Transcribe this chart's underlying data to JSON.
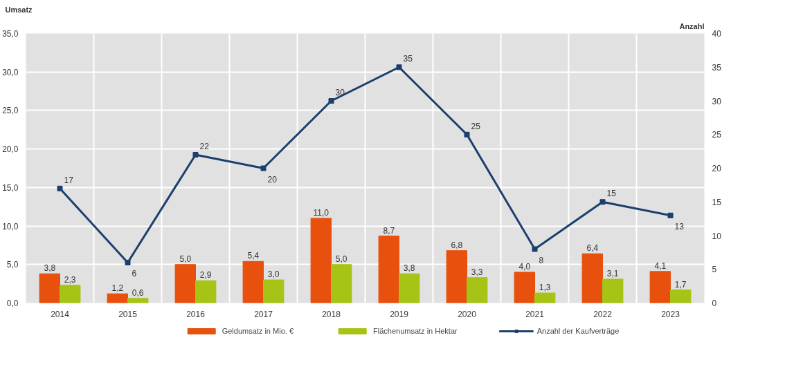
{
  "chart_data": {
    "type": "bar",
    "ylabel": "Umsatz",
    "y2label": "Anzahl",
    "categories": [
      "2014",
      "2015",
      "2016",
      "2017",
      "2018",
      "2019",
      "2020",
      "2021",
      "2022",
      "2023"
    ],
    "series": [
      {
        "name": "Geldumsatz in Mio. €",
        "color": "#e8500e",
        "values": [
          3.8,
          1.2,
          5.0,
          5.4,
          11.0,
          8.7,
          6.8,
          4.0,
          6.4,
          4.1
        ],
        "value_labels": [
          "3,8",
          "1,2",
          "5,0",
          "5,4",
          "11,0",
          "8,7",
          "6,8",
          "4,0",
          "6,4",
          "4,1"
        ]
      },
      {
        "name": "Flächenumsatz in Hektar",
        "color": "#a5c416",
        "values": [
          2.3,
          0.6,
          2.9,
          3.0,
          5.0,
          3.8,
          3.3,
          1.3,
          3.1,
          1.7
        ],
        "value_labels": [
          "2,3",
          "0,6",
          "2,9",
          "3,0",
          "5,0",
          "3,8",
          "3,3",
          "1,3",
          "3,1",
          "1,7"
        ]
      },
      {
        "name": "Anzahl der Kaufverträge",
        "type": "line",
        "axis": "y2",
        "color": "#1c3f6e",
        "marker": "square",
        "values": [
          17,
          6,
          22,
          20,
          30,
          35,
          25,
          8,
          15,
          13
        ],
        "value_labels": [
          "17",
          "6",
          "22",
          "20",
          "30",
          "35",
          "25",
          "8",
          "15",
          "13"
        ]
      }
    ],
    "ylim": [
      0,
      35
    ],
    "yticks": [
      {
        "value": 0,
        "label": "0,0"
      },
      {
        "value": 5,
        "label": "5,0"
      },
      {
        "value": 10,
        "label": "10,0"
      },
      {
        "value": 15,
        "label": "15,0"
      },
      {
        "value": 20,
        "label": "20,0"
      },
      {
        "value": 25,
        "label": "25,0"
      },
      {
        "value": 30,
        "label": "30,0"
      },
      {
        "value": 35,
        "label": "35,0"
      }
    ],
    "y2lim": [
      0,
      40
    ],
    "y2ticks": [
      0,
      5,
      10,
      15,
      20,
      25,
      30,
      35,
      40
    ],
    "grid": true,
    "legend": "bottom"
  }
}
